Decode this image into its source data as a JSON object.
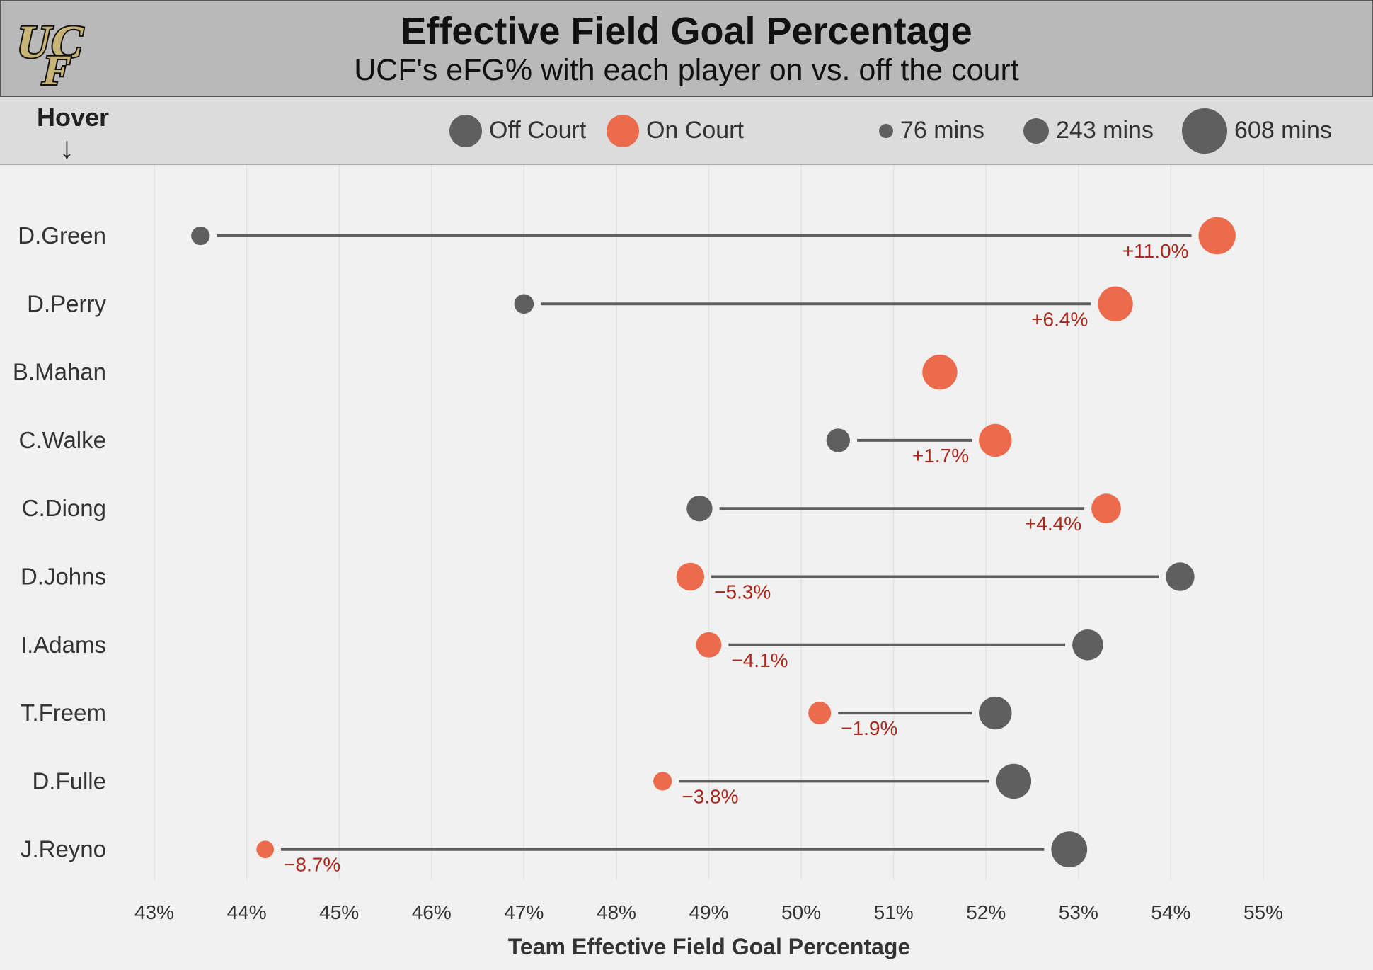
{
  "header": {
    "logo_text": "UCF",
    "title": "Effective Field Goal Percentage",
    "subtitle": "UCF's eFG% with each player on vs. off the court"
  },
  "legend": {
    "hover_label": "Hover",
    "hover_arrow": "↓",
    "off_court_label": "Off Court",
    "on_court_label": "On Court",
    "size_76": "76 mins",
    "size_243": "243 mins",
    "size_608": "608 mins"
  },
  "colors": {
    "off_court": "#5f5f5f",
    "on_court": "#ec6b4c",
    "diff_text": "#a8261a",
    "header_bg": "#b9b9b9",
    "legend_bg": "#dcdcdc",
    "plot_bg": "#f1f1f1"
  },
  "chart_data": {
    "type": "scatter",
    "title": "Effective Field Goal Percentage",
    "subtitle": "UCF's eFG% with each player on vs. off the court",
    "xlabel": "Team Effective Field Goal Percentage",
    "xlim": [
      43,
      55
    ],
    "x_ticks": [
      "43%",
      "44%",
      "45%",
      "46%",
      "47%",
      "48%",
      "49%",
      "50%",
      "51%",
      "52%",
      "53%",
      "54%",
      "55%"
    ],
    "grid": "vertical",
    "rows": [
      {
        "player": "D.Green",
        "off": 43.5,
        "on": 54.5,
        "diff": "+11.0%",
        "off_mins": 76,
        "on_mins": 608
      },
      {
        "player": "D.Perry",
        "off": 47.0,
        "on": 53.4,
        "diff": "+6.4%",
        "off_mins": 90,
        "on_mins": 520
      },
      {
        "player": "B.Mahan",
        "off": null,
        "on": 51.5,
        "diff": "",
        "off_mins": 0,
        "on_mins": 520
      },
      {
        "player": "C.Walke",
        "off": 50.4,
        "on": 52.1,
        "diff": "+1.7%",
        "off_mins": 170,
        "on_mins": 440
      },
      {
        "player": "C.Diong",
        "off": 48.9,
        "on": 53.3,
        "diff": "+4.4%",
        "off_mins": 220,
        "on_mins": 330
      },
      {
        "player": "D.Johns",
        "off": 54.1,
        "on": 48.8,
        "diff": "−5.3%",
        "off_mins": 300,
        "on_mins": 280
      },
      {
        "player": "I.Adams",
        "off": 53.1,
        "on": 49.0,
        "diff": "−4.1%",
        "off_mins": 370,
        "on_mins": 210
      },
      {
        "player": "T.Freem",
        "off": 52.1,
        "on": 50.2,
        "diff": "−1.9%",
        "off_mins": 440,
        "on_mins": 150
      },
      {
        "player": "D.Fulle",
        "off": 52.3,
        "on": 48.5,
        "diff": "−3.8%",
        "off_mins": 520,
        "on_mins": 76
      },
      {
        "player": "J.Reyno",
        "off": 52.9,
        "on": 44.2,
        "diff": "−8.7%",
        "off_mins": 560,
        "on_mins": 60
      }
    ]
  }
}
